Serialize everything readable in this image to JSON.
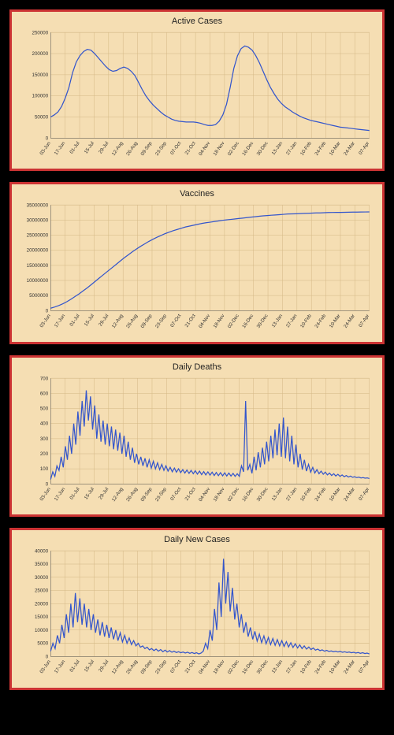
{
  "page_background": "#000000",
  "panel_background": "#f5deb3",
  "panel_border": "#cc3333",
  "line_color": "#3355cc",
  "grid_color": "#d4b886",
  "axis_color": "#555555",
  "text_color": "#333333",
  "title_fontsize": 11,
  "tick_fontsize": 6,
  "x_labels": [
    "03-Jun",
    "17-Jun",
    "01-Jul",
    "15-Jul",
    "29-Jul",
    "12-Aug",
    "26-Aug",
    "09-Sep",
    "23-Sep",
    "07-Oct",
    "21-Oct",
    "04-Nov",
    "18-Nov",
    "02-Dec",
    "16-Dec",
    "30-Dec",
    "13-Jan",
    "27-Jan",
    "10-Feb",
    "24-Feb",
    "10-Mar",
    "24-Mar",
    "07-Apr"
  ],
  "charts": [
    {
      "id": "active-cases",
      "title": "Active Cases",
      "type": "line",
      "ylim": [
        0,
        250000
      ],
      "ytick_step": 50000,
      "yticks": [
        0,
        50000,
        100000,
        150000,
        200000,
        250000
      ],
      "values": [
        50000,
        55000,
        62000,
        75000,
        95000,
        120000,
        155000,
        180000,
        195000,
        205000,
        210000,
        208000,
        200000,
        190000,
        180000,
        170000,
        162000,
        158000,
        160000,
        165000,
        168000,
        165000,
        158000,
        148000,
        132000,
        115000,
        100000,
        88000,
        78000,
        70000,
        62000,
        55000,
        50000,
        45000,
        42000,
        40000,
        39000,
        38000,
        38000,
        38000,
        37000,
        35000,
        32000,
        30000,
        30000,
        32000,
        40000,
        55000,
        80000,
        120000,
        165000,
        195000,
        212000,
        218000,
        215000,
        208000,
        195000,
        178000,
        158000,
        138000,
        120000,
        105000,
        92000,
        82000,
        74000,
        68000,
        62000,
        57000,
        52000,
        48000,
        45000,
        42000,
        40000,
        38000,
        36000,
        34000,
        32000,
        30000,
        28000,
        26000,
        25000,
        24000,
        23000,
        22000,
        21000,
        20000,
        19000,
        18000
      ]
    },
    {
      "id": "vaccines",
      "title": "Vaccines",
      "type": "line",
      "ylim": [
        0,
        35000000
      ],
      "ytick_step": 5000000,
      "yticks": [
        0,
        5000000,
        10000000,
        15000000,
        20000000,
        25000000,
        30000000,
        35000000
      ],
      "values": [
        800000,
        1200000,
        1700000,
        2300000,
        3000000,
        3800000,
        4700000,
        5600000,
        6600000,
        7600000,
        8700000,
        9800000,
        10900000,
        12000000,
        13100000,
        14200000,
        15300000,
        16400000,
        17500000,
        18500000,
        19500000,
        20400000,
        21300000,
        22100000,
        22900000,
        23600000,
        24300000,
        24900000,
        25500000,
        26000000,
        26500000,
        26900000,
        27300000,
        27700000,
        28000000,
        28300000,
        28600000,
        28900000,
        29100000,
        29300000,
        29500000,
        29700000,
        29900000,
        30050000,
        30200000,
        30350000,
        30500000,
        30650000,
        30800000,
        30950000,
        31100000,
        31250000,
        31400000,
        31500000,
        31600000,
        31700000,
        31800000,
        31900000,
        32000000,
        32050000,
        32100000,
        32150000,
        32200000,
        32250000,
        32300000,
        32350000,
        32400000,
        32450000,
        32500000,
        32520000,
        32540000,
        32560000,
        32580000,
        32600000,
        32620000,
        32640000,
        32660000,
        32680000,
        32700000
      ]
    },
    {
      "id": "daily-deaths",
      "title": "Daily Deaths",
      "type": "line",
      "ylim": [
        0,
        700
      ],
      "ytick_step": 100,
      "yticks": [
        0,
        100,
        200,
        300,
        400,
        500,
        600,
        700
      ],
      "values": [
        30,
        80,
        50,
        120,
        90,
        180,
        110,
        250,
        160,
        320,
        200,
        400,
        260,
        480,
        320,
        550,
        380,
        620,
        420,
        580,
        360,
        520,
        300,
        460,
        280,
        420,
        260,
        400,
        250,
        380,
        230,
        360,
        220,
        340,
        200,
        320,
        180,
        280,
        160,
        240,
        140,
        200,
        130,
        180,
        120,
        170,
        110,
        160,
        105,
        150,
        100,
        140,
        95,
        130,
        90,
        120,
        85,
        110,
        80,
        105,
        78,
        100,
        75,
        95,
        72,
        92,
        70,
        90,
        68,
        88,
        65,
        85,
        62,
        82,
        60,
        80,
        58,
        78,
        56,
        76,
        55,
        75,
        54,
        74,
        53,
        72,
        52,
        70,
        50,
        68,
        50,
        120,
        80,
        550,
        90,
        130,
        70,
        180,
        90,
        210,
        110,
        240,
        130,
        280,
        150,
        320,
        170,
        360,
        190,
        400,
        180,
        440,
        170,
        380,
        150,
        320,
        130,
        260,
        110,
        200,
        95,
        160,
        85,
        130,
        78,
        110,
        72,
        95,
        68,
        85,
        64,
        78,
        60,
        72,
        56,
        68,
        53,
        64,
        50,
        60,
        48,
        56,
        46,
        52,
        44,
        48,
        42,
        45,
        40,
        42,
        38,
        40,
        36
      ]
    },
    {
      "id": "daily-new-cases",
      "title": "Daily New Cases",
      "type": "line",
      "ylim": [
        0,
        40000
      ],
      "ytick_step": 5000,
      "yticks": [
        0,
        5000,
        10000,
        15000,
        20000,
        25000,
        30000,
        35000,
        40000
      ],
      "values": [
        2000,
        5000,
        3000,
        8000,
        5000,
        12000,
        7000,
        16000,
        9000,
        20000,
        11000,
        24000,
        13000,
        22000,
        12000,
        20000,
        11000,
        18000,
        10000,
        16000,
        9000,
        14000,
        8000,
        13000,
        7500,
        12000,
        7000,
        11000,
        6500,
        10000,
        6000,
        9000,
        5500,
        8000,
        5000,
        7000,
        4500,
        6000,
        4000,
        5000,
        3500,
        4000,
        3000,
        3500,
        2500,
        3000,
        2200,
        2800,
        2000,
        2600,
        1800,
        2400,
        1700,
        2200,
        1600,
        2000,
        1500,
        1800,
        1400,
        1700,
        1300,
        1600,
        1200,
        1500,
        1100,
        1400,
        1000,
        1300,
        2000,
        5000,
        3000,
        10000,
        6000,
        18000,
        10000,
        28000,
        15000,
        37000,
        20000,
        32000,
        17000,
        26000,
        14000,
        20000,
        11000,
        16000,
        9000,
        13000,
        7500,
        11000,
        6500,
        9500,
        5800,
        8500,
        5200,
        7800,
        4800,
        7200,
        4500,
        6800,
        4200,
        6400,
        4000,
        6000,
        3800,
        5600,
        3600,
        5200,
        3400,
        4800,
        3200,
        4400,
        3000,
        4000,
        2800,
        3600,
        2600,
        3200,
        2400,
        2800,
        2200,
        2500,
        2000,
        2300,
        1900,
        2100,
        1800,
        2000,
        1700,
        1900,
        1600,
        1800,
        1500,
        1700,
        1400,
        1600,
        1300,
        1500,
        1200,
        1400,
        1100,
        1300,
        1000
      ]
    }
  ]
}
